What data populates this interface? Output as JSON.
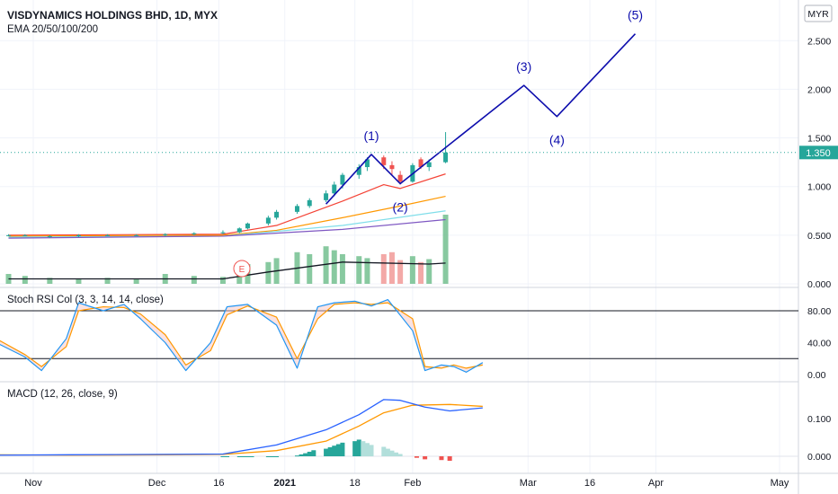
{
  "header": {
    "symbol_title": "VISDYNAMICS HOLDINGS BHD, 1D, MYX",
    "indicator": "EMA 20/50/100/200",
    "currency": "MYR"
  },
  "colors": {
    "up": "#26a69a",
    "down": "#ef5350",
    "ema20": "#f44336",
    "ema50": "#ff9800",
    "ema100": "#80deea",
    "ema200": "#7e57c2",
    "wave": "#0d0dad",
    "price_badge": "#26a69a",
    "macd": "#2962ff",
    "signal": "#ff9800",
    "stoch_k": "#2196f3",
    "stoch_d": "#ff9800"
  },
  "chart_data": [
    {
      "type": "line",
      "pane": "price",
      "title": "VISDYNAMICS HOLDINGS BHD, 1D, MYX",
      "ylim": [
        0,
        2.9
      ],
      "price_ticks": [
        "2.500",
        "2.000",
        "1.500",
        "1.000",
        "0.500",
        "0.000"
      ],
      "last_price": "1.350",
      "candles": [
        {
          "date": "2020-10-26",
          "o": 0.5,
          "h": 0.51,
          "l": 0.49,
          "c": 0.5
        },
        {
          "date": "2020-10-30",
          "o": 0.5,
          "h": 0.51,
          "l": 0.49,
          "c": 0.5
        },
        {
          "date": "2020-11-05",
          "o": 0.48,
          "h": 0.5,
          "l": 0.47,
          "c": 0.49
        },
        {
          "date": "2020-11-12",
          "o": 0.49,
          "h": 0.51,
          "l": 0.48,
          "c": 0.5
        },
        {
          "date": "2020-11-19",
          "o": 0.5,
          "h": 0.51,
          "l": 0.49,
          "c": 0.5
        },
        {
          "date": "2020-11-26",
          "o": 0.5,
          "h": 0.51,
          "l": 0.49,
          "c": 0.5
        },
        {
          "date": "2020-12-03",
          "o": 0.5,
          "h": 0.52,
          "l": 0.49,
          "c": 0.51
        },
        {
          "date": "2020-12-10",
          "o": 0.51,
          "h": 0.53,
          "l": 0.5,
          "c": 0.52
        },
        {
          "date": "2020-12-17",
          "o": 0.52,
          "h": 0.55,
          "l": 0.51,
          "c": 0.53
        },
        {
          "date": "2020-12-21",
          "o": 0.53,
          "h": 0.58,
          "l": 0.52,
          "c": 0.57
        },
        {
          "date": "2020-12-23",
          "o": 0.57,
          "h": 0.63,
          "l": 0.56,
          "c": 0.62
        },
        {
          "date": "2020-12-28",
          "o": 0.62,
          "h": 0.7,
          "l": 0.6,
          "c": 0.68
        },
        {
          "date": "2020-12-30",
          "o": 0.68,
          "h": 0.76,
          "l": 0.66,
          "c": 0.74
        },
        {
          "date": "2021-01-04",
          "o": 0.74,
          "h": 0.82,
          "l": 0.72,
          "c": 0.8
        },
        {
          "date": "2021-01-07",
          "o": 0.8,
          "h": 0.88,
          "l": 0.78,
          "c": 0.86
        },
        {
          "date": "2021-01-11",
          "o": 0.86,
          "h": 0.96,
          "l": 0.84,
          "c": 0.93
        },
        {
          "date": "2021-01-13",
          "o": 0.93,
          "h": 1.05,
          "l": 0.9,
          "c": 1.02
        },
        {
          "date": "2021-01-15",
          "o": 1.02,
          "h": 1.14,
          "l": 0.98,
          "c": 1.12
        },
        {
          "date": "2021-01-19",
          "o": 1.12,
          "h": 1.23,
          "l": 1.08,
          "c": 1.2
        },
        {
          "date": "2021-01-21",
          "o": 1.2,
          "h": 1.3,
          "l": 1.16,
          "c": 1.28
        },
        {
          "date": "2021-01-25",
          "o": 1.3,
          "h": 1.32,
          "l": 1.18,
          "c": 1.22
        },
        {
          "date": "2021-01-27",
          "o": 1.22,
          "h": 1.26,
          "l": 1.12,
          "c": 1.18
        },
        {
          "date": "2021-01-29",
          "o": 1.12,
          "h": 1.16,
          "l": 1.02,
          "c": 1.05
        },
        {
          "date": "2021-02-01",
          "o": 1.05,
          "h": 1.24,
          "l": 1.04,
          "c": 1.22
        },
        {
          "date": "2021-02-03",
          "o": 1.28,
          "h": 1.3,
          "l": 1.18,
          "c": 1.2
        },
        {
          "date": "2021-02-05",
          "o": 1.2,
          "h": 1.28,
          "l": 1.16,
          "c": 1.25
        },
        {
          "date": "2021-02-09",
          "o": 1.25,
          "h": 1.56,
          "l": 1.24,
          "c": 1.35
        }
      ],
      "series": [
        {
          "name": "EMA 20",
          "values": [
            [
              "2020-10-26",
              0.5
            ],
            [
              "2020-12-17",
              0.51
            ],
            [
              "2020-12-30",
              0.6
            ],
            [
              "2021-01-15",
              0.85
            ],
            [
              "2021-01-25",
              1.02
            ],
            [
              "2021-01-29",
              0.98
            ],
            [
              "2021-02-09",
              1.13
            ]
          ]
        },
        {
          "name": "EMA 50",
          "values": [
            [
              "2020-10-26",
              0.49
            ],
            [
              "2020-12-17",
              0.5
            ],
            [
              "2020-12-30",
              0.55
            ],
            [
              "2021-01-15",
              0.68
            ],
            [
              "2021-01-29",
              0.8
            ],
            [
              "2021-02-09",
              0.9
            ]
          ]
        },
        {
          "name": "EMA 100",
          "values": [
            [
              "2020-10-26",
              0.48
            ],
            [
              "2020-12-17",
              0.49
            ],
            [
              "2021-01-15",
              0.6
            ],
            [
              "2021-02-09",
              0.75
            ]
          ]
        },
        {
          "name": "EMA 200",
          "values": [
            [
              "2020-10-26",
              0.47
            ],
            [
              "2020-12-17",
              0.49
            ],
            [
              "2021-01-15",
              0.56
            ],
            [
              "2021-02-09",
              0.66
            ]
          ]
        }
      ],
      "volume": [
        0.1,
        0.08,
        0.06,
        0.05,
        0.06,
        0.05,
        0.1,
        0.08,
        0.07,
        0.18,
        0.2,
        0.22,
        0.26,
        0.32,
        0.3,
        0.38,
        0.34,
        0.3,
        0.28,
        0.26,
        0.3,
        0.32,
        0.24,
        0.28,
        0.22,
        0.25,
        0.7
      ],
      "volume_ma": [
        [
          "2020-10-26",
          0.05
        ],
        [
          "2020-12-17",
          0.05
        ],
        [
          "2020-12-28",
          0.12
        ],
        [
          "2021-01-15",
          0.22
        ],
        [
          "2021-02-05",
          0.2
        ],
        [
          "2021-02-09",
          0.21
        ]
      ],
      "elliott_wave": {
        "points": [
          [
            "2021-01-11",
            0.82
          ],
          [
            "2021-01-22",
            1.33
          ],
          [
            "2021-01-29",
            1.03
          ],
          [
            "2021-02-28",
            2.04
          ],
          [
            "2021-03-08",
            1.72
          ],
          [
            "2021-03-27",
            2.57
          ]
        ],
        "labels": [
          "(1)",
          "(2)",
          "(3)",
          "(4)",
          "(5)"
        ]
      }
    },
    {
      "type": "line",
      "pane": "stoch_rsi",
      "title": "Stoch RSI Col (3, 3, 14, 14, close)",
      "ylim": [
        -10,
        100
      ],
      "y_ticks": [
        "80.00",
        "40.00",
        "0.00"
      ],
      "levels": [
        80,
        20
      ],
      "series": [
        {
          "name": "K",
          "values": [
            [
              "2020-10-23",
              40
            ],
            [
              "2020-10-30",
              22
            ],
            [
              "2020-11-03",
              5
            ],
            [
              "2020-11-09",
              45
            ],
            [
              "2020-11-12",
              90
            ],
            [
              "2020-11-18",
              80
            ],
            [
              "2020-11-23",
              88
            ],
            [
              "2020-11-27",
              70
            ],
            [
              "2020-12-03",
              40
            ],
            [
              "2020-12-08",
              5
            ],
            [
              "2020-12-14",
              40
            ],
            [
              "2020-12-18",
              85
            ],
            [
              "2020-12-23",
              88
            ],
            [
              "2020-12-30",
              62
            ],
            [
              "2021-01-04",
              8
            ],
            [
              "2021-01-09",
              85
            ],
            [
              "2021-01-13",
              90
            ],
            [
              "2021-01-18",
              92
            ],
            [
              "2021-01-22",
              86
            ],
            [
              "2021-01-26",
              94
            ],
            [
              "2021-02-01",
              55
            ],
            [
              "2021-02-04",
              5
            ],
            [
              "2021-02-08",
              12
            ],
            [
              "2021-02-11",
              10
            ],
            [
              "2021-02-14",
              3
            ],
            [
              "2021-02-18",
              15
            ]
          ]
        },
        {
          "name": "D",
          "values": [
            [
              "2020-10-23",
              45
            ],
            [
              "2020-10-30",
              25
            ],
            [
              "2020-11-03",
              10
            ],
            [
              "2020-11-09",
              35
            ],
            [
              "2020-11-12",
              80
            ],
            [
              "2020-11-18",
              85
            ],
            [
              "2020-11-23",
              84
            ],
            [
              "2020-11-27",
              76
            ],
            [
              "2020-12-03",
              50
            ],
            [
              "2020-12-08",
              12
            ],
            [
              "2020-12-14",
              30
            ],
            [
              "2020-12-18",
              75
            ],
            [
              "2020-12-23",
              86
            ],
            [
              "2020-12-30",
              72
            ],
            [
              "2021-01-04",
              20
            ],
            [
              "2021-01-09",
              70
            ],
            [
              "2021-01-13",
              88
            ],
            [
              "2021-01-18",
              90
            ],
            [
              "2021-01-22",
              88
            ],
            [
              "2021-01-26",
              90
            ],
            [
              "2021-02-01",
              70
            ],
            [
              "2021-02-04",
              10
            ],
            [
              "2021-02-08",
              8
            ],
            [
              "2021-02-11",
              12
            ],
            [
              "2021-02-14",
              8
            ],
            [
              "2021-02-18",
              12
            ]
          ]
        }
      ]
    },
    {
      "type": "bar",
      "pane": "macd",
      "title": "MACD (12, 26, close, 9)",
      "ylim": [
        -0.03,
        0.22
      ],
      "y_ticks": [
        "0.100",
        "0.000"
      ],
      "histogram": [
        0.0,
        0.0,
        0.0,
        0.0,
        0.0,
        0.0,
        0.0,
        0.0,
        0.0,
        0.002,
        0.005,
        0.008,
        0.012,
        0.016,
        0.02,
        0.024,
        0.028,
        0.032,
        0.036,
        0.04,
        0.044,
        0.04,
        0.035,
        0.03,
        0.025,
        0.02,
        0.015,
        0.01,
        0.006,
        -0.004,
        -0.008,
        -0.01,
        -0.012
      ],
      "histogram_dates": [
        "2020-12-17",
        "2020-12-18",
        "2020-12-21",
        "2020-12-22",
        "2020-12-23",
        "2020-12-24",
        "2020-12-28",
        "2020-12-29",
        "2020-12-30",
        "2021-01-04",
        "2021-01-05",
        "2021-01-06",
        "2021-01-07",
        "2021-01-08",
        "2021-01-11",
        "2021-01-12",
        "2021-01-13",
        "2021-01-14",
        "2021-01-15",
        "2021-01-18",
        "2021-01-19",
        "2021-01-20",
        "2021-01-21",
        "2021-01-22",
        "2021-01-25",
        "2021-01-26",
        "2021-01-27",
        "2021-01-28",
        "2021-01-29",
        "2021-02-02",
        "2021-02-04",
        "2021-02-08",
        "2021-02-10"
      ],
      "series": [
        {
          "name": "MACD",
          "values": [
            [
              "2020-10-23",
              0.003
            ],
            [
              "2020-11-10",
              0.004
            ],
            [
              "2020-12-03",
              0.005
            ],
            [
              "2020-12-17",
              0.006
            ],
            [
              "2020-12-30",
              0.03
            ],
            [
              "2021-01-11",
              0.07
            ],
            [
              "2021-01-19",
              0.11
            ],
            [
              "2021-01-25",
              0.15
            ],
            [
              "2021-01-29",
              0.148
            ],
            [
              "2021-02-04",
              0.13
            ],
            [
              "2021-02-10",
              0.12
            ],
            [
              "2021-02-18",
              0.128
            ]
          ]
        },
        {
          "name": "Signal",
          "values": [
            [
              "2020-10-23",
              0.004
            ],
            [
              "2020-11-10",
              0.003
            ],
            [
              "2020-12-03",
              0.004
            ],
            [
              "2020-12-17",
              0.005
            ],
            [
              "2020-12-30",
              0.015
            ],
            [
              "2021-01-11",
              0.04
            ],
            [
              "2021-01-19",
              0.08
            ],
            [
              "2021-01-25",
              0.115
            ],
            [
              "2021-02-01",
              0.135
            ],
            [
              "2021-02-10",
              0.137
            ],
            [
              "2021-02-18",
              0.132
            ]
          ]
        }
      ]
    }
  ],
  "x_axis": {
    "ticks": [
      {
        "label": "Nov",
        "date": "2020-11-01"
      },
      {
        "label": "Dec",
        "date": "2020-12-01"
      },
      {
        "label": "16",
        "date": "2020-12-16"
      },
      {
        "label": "2021",
        "date": "2021-01-01"
      },
      {
        "label": "18",
        "date": "2021-01-18"
      },
      {
        "label": "Feb",
        "date": "2021-02-01"
      },
      {
        "label": "Mar",
        "date": "2021-03-01"
      },
      {
        "label": "16",
        "date": "2021-03-16"
      },
      {
        "label": "Apr",
        "date": "2021-04-01"
      },
      {
        "label": "May",
        "date": "2021-05-01"
      }
    ]
  },
  "earnings_marker": "E"
}
